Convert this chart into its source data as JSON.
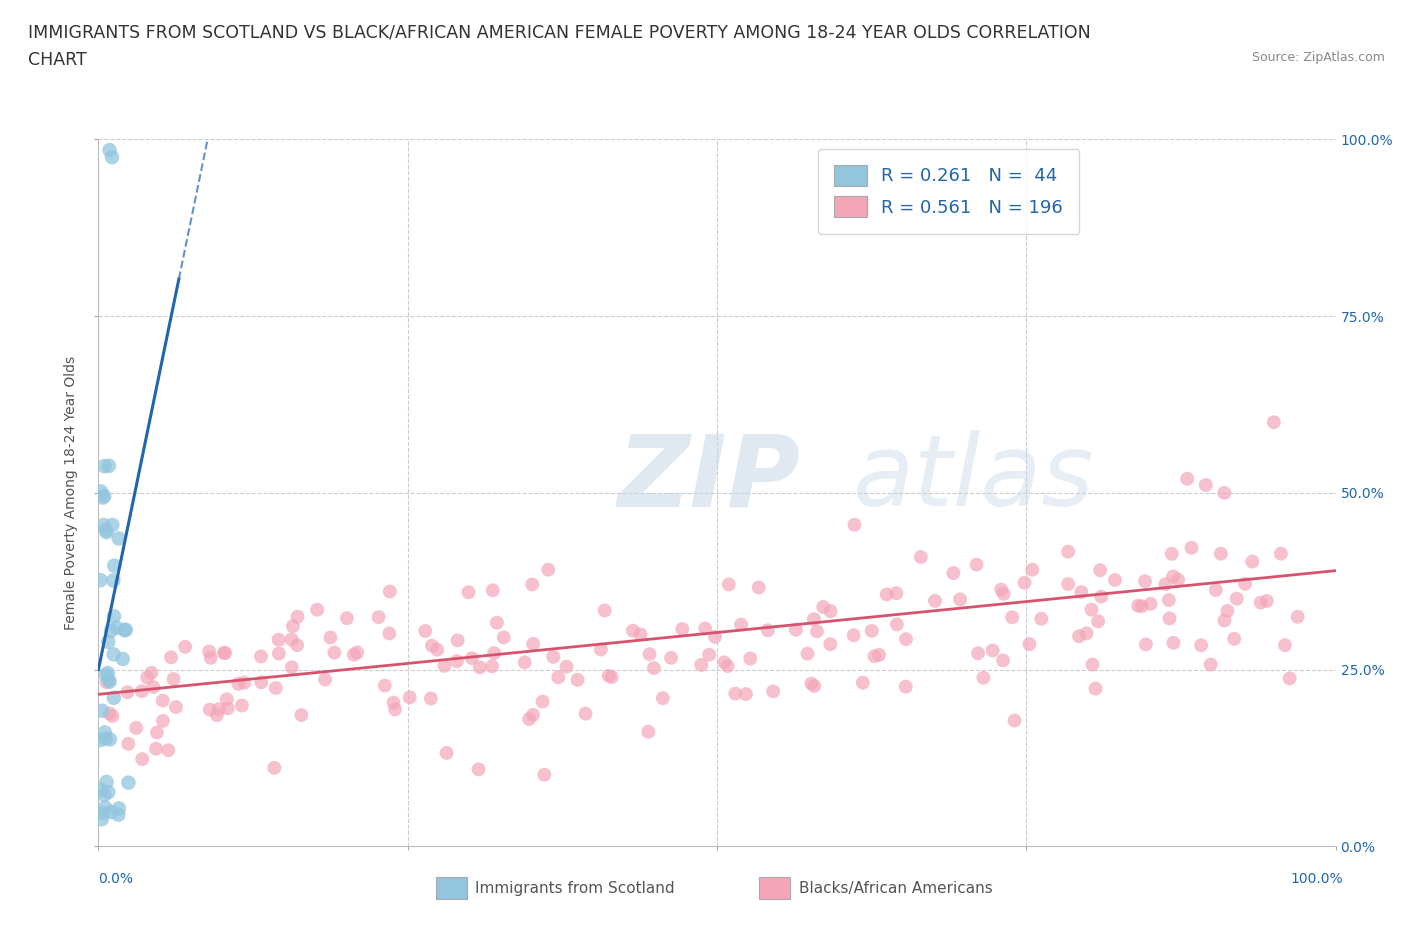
{
  "title_line1": "IMMIGRANTS FROM SCOTLAND VS BLACK/AFRICAN AMERICAN FEMALE POVERTY AMONG 18-24 YEAR OLDS CORRELATION",
  "title_line2": "CHART",
  "source": "Source: ZipAtlas.com",
  "ylabel": "Female Poverty Among 18-24 Year Olds",
  "xlabel_blue": "Immigrants from Scotland",
  "xlabel_pink": "Blacks/African Americans",
  "R_blue": 0.261,
  "N_blue": 44,
  "R_pink": 0.561,
  "N_pink": 196,
  "xlim": [
    0.0,
    1.0
  ],
  "ylim": [
    0.0,
    1.0
  ],
  "yticks": [
    0.0,
    0.25,
    0.5,
    0.75,
    1.0
  ],
  "right_yticklabels": [
    "0.0%",
    "25.0%",
    "50.0%",
    "75.0%",
    "100.0%"
  ],
  "blue_color": "#92c5de",
  "blue_line_color": "#2166ac",
  "pink_color": "#f4a6b8",
  "pink_line_color": "#d6536d",
  "watermark_zip": "ZIP",
  "watermark_atlas": "atlas",
  "background_color": "#ffffff",
  "grid_color": "#cccccc",
  "title_fontsize": 12.5,
  "axis_label_fontsize": 10,
  "tick_fontsize": 10,
  "legend_fontsize": 13,
  "source_fontsize": 9,
  "legend_color": "#2166ac"
}
